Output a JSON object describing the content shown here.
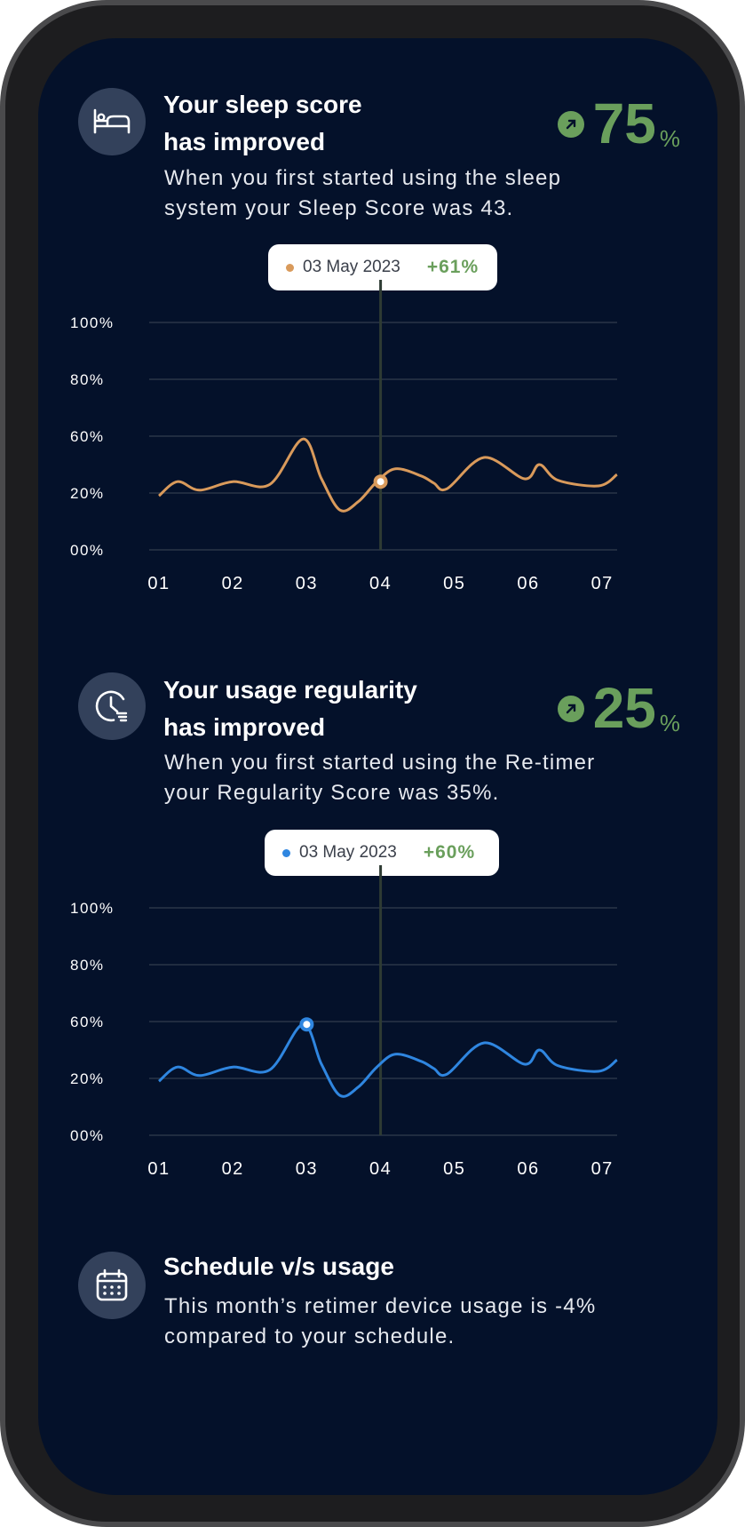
{
  "sleep": {
    "title": "Your sleep score\nhas improved",
    "score_value": "75",
    "score_unit": "%",
    "description": "When you first started using the sleep\nsystem your Sleep Score was 43.",
    "tooltip": {
      "date": "03 May 2023",
      "delta": "+61%",
      "dot_color": "#d99a5b"
    },
    "icon": "bed-icon"
  },
  "regularity": {
    "title": "Your usage regularity\nhas improved",
    "score_value": "25",
    "score_unit": "%",
    "description": "When you first started using the Re-timer\nyour Regularity Score was 35%.",
    "tooltip": {
      "date": "03 May 2023",
      "delta": "+60%",
      "dot_color": "#2f86e0"
    },
    "icon": "clock-icon"
  },
  "schedule": {
    "title": "Schedule v/s usage",
    "description": "This month’s retimer device usage is -4%\ncompared to your schedule.",
    "icon": "calendar-icon"
  },
  "chart_data": [
    {
      "type": "line",
      "y_tick_labels": [
        "100%",
        "80%",
        "60%",
        "20%",
        "00%"
      ],
      "categories": [
        "01",
        "02",
        "03",
        "04",
        "05",
        "06",
        "07"
      ],
      "color": "#d99a5b",
      "grid": true,
      "highlight": {
        "x": "04",
        "y": 28
      },
      "series": [
        {
          "x": [
            1.0,
            1.25,
            1.55,
            2.0,
            2.5,
            2.95,
            3.2,
            3.45,
            3.7,
            3.95,
            4.2,
            4.55,
            4.72,
            4.9,
            5.4,
            5.95,
            6.15,
            6.4,
            6.95,
            7.2
          ],
          "y": [
            19,
            28,
            22,
            28,
            26,
            58,
            30,
            14,
            17,
            28,
            37,
            32,
            27,
            23,
            45,
            30,
            40,
            29,
            25,
            33
          ]
        }
      ]
    },
    {
      "type": "line",
      "y_tick_labels": [
        "100%",
        "80%",
        "60%",
        "20%",
        "00%"
      ],
      "categories": [
        "01",
        "02",
        "03",
        "04",
        "05",
        "06",
        "07"
      ],
      "color": "#2f86e0",
      "grid": true,
      "highlight": {
        "x": "03",
        "y": 58
      },
      "series": [
        {
          "x": [
            1.0,
            1.25,
            1.55,
            2.0,
            2.5,
            2.95,
            3.2,
            3.45,
            3.7,
            3.95,
            4.2,
            4.55,
            4.72,
            4.9,
            5.4,
            5.95,
            6.15,
            6.4,
            6.95,
            7.2
          ],
          "y": [
            19,
            28,
            22,
            28,
            26,
            58,
            30,
            14,
            17,
            28,
            37,
            32,
            27,
            23,
            45,
            30,
            40,
            29,
            25,
            33
          ]
        }
      ]
    }
  ]
}
